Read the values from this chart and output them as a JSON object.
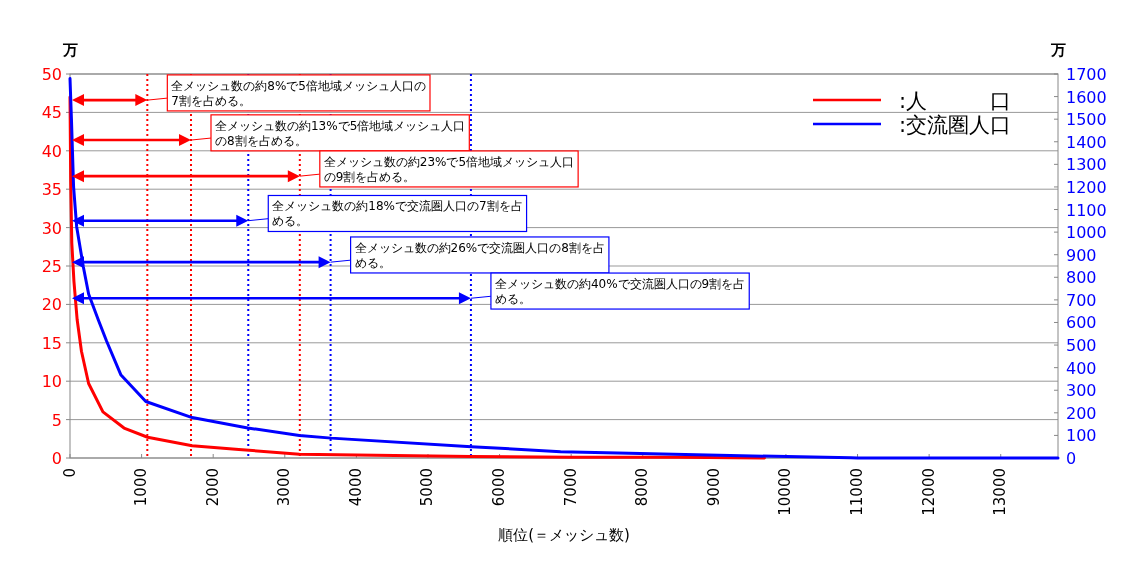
{
  "chart_data": {
    "type": "line",
    "xlabel": "順位(＝メッシュ数)",
    "ylabel": "万",
    "y2label": "万",
    "xlim": [
      0,
      13800
    ],
    "xticks": [
      0,
      1000,
      2000,
      3000,
      4000,
      5000,
      6000,
      7000,
      8000,
      9000,
      10000,
      11000,
      12000,
      13000
    ],
    "ylim": [
      0,
      50
    ],
    "yticks": [
      0,
      5,
      10,
      15,
      20,
      25,
      30,
      35,
      40,
      45,
      50
    ],
    "y2lim": [
      0,
      1700
    ],
    "y2ticks": [
      0,
      100,
      200,
      300,
      400,
      500,
      600,
      700,
      800,
      900,
      1000,
      1100,
      1200,
      1300,
      1400,
      1500,
      1600,
      1700
    ],
    "grid": "y",
    "legend": "top right",
    "line_style": "solid",
    "series": [
      {
        "name": ":人　　　口",
        "color": "#ff0000",
        "x": [
          0,
          10,
          25,
          55,
          100,
          160,
          260,
          460,
          755,
          1084,
          1706,
          2358,
          3204,
          4000,
          5600,
          7000,
          8500,
          9700
        ],
        "values": [
          47,
          36,
          28,
          23,
          18,
          13.9,
          9.7,
          6.0,
          3.9,
          2.7,
          1.6,
          1.1,
          0.5,
          0.4,
          0.2,
          0.1,
          0.1,
          0
        ]
      },
      {
        "name": ":交流圏人口",
        "color": "#0000ff",
        "axis": "y2",
        "x": [
          0,
          20,
          50,
          93,
          186,
          260,
          396,
          509,
          709,
          1059,
          1706,
          2483,
          3204,
          3650,
          5604,
          6853,
          7650,
          8905,
          10909,
          11000,
          13800
        ],
        "values": [
          1680,
          1500,
          1200,
          1024,
          847,
          726,
          611,
          519,
          369,
          250,
          179,
          133,
          100,
          88,
          50,
          28,
          22,
          13,
          1,
          0,
          0
        ]
      }
    ],
    "ref_lines": [
      {
        "axis": "x",
        "value": 1080,
        "color": "#ff0000",
        "line_style": "dotted"
      },
      {
        "axis": "x",
        "value": 1690,
        "color": "#ff0000",
        "line_style": "dotted"
      },
      {
        "axis": "x",
        "value": 3210,
        "color": "#ff0000",
        "line_style": "dotted"
      },
      {
        "axis": "x",
        "value": 2490,
        "color": "#0000ff",
        "line_style": "dotted"
      },
      {
        "axis": "x",
        "value": 3640,
        "color": "#0000ff",
        "line_style": "dotted"
      },
      {
        "axis": "x",
        "value": 5600,
        "color": "#0000ff",
        "line_style": "dotted"
      }
    ],
    "annotations": [
      {
        "text": "全メッシュ数の約8%で5倍地域メッシュ人口の7割を占める。",
        "x": 1080,
        "y": 46.6
      },
      {
        "text": "全メッシュ数の約13%で5倍地域メッシュ人口の8割を占める。",
        "x": 1690,
        "y": 41.4
      },
      {
        "text": "全メッシュ数の約23%で5倍地域メッシュ人口の9割を占める。",
        "x": 3210,
        "y": 36.7
      },
      {
        "text": "全メッシュ数の約18%で交流圏人口の7割を占める。",
        "x": 2490,
        "y": 30.9
      },
      {
        "text": "全メッシュ数の約26%で交流圏人口の8割を占める。",
        "x": 3640,
        "y": 25.5
      },
      {
        "text": "全メッシュ数の約40%で交流圏人口の9割を占める。",
        "x": 5600,
        "y": 20.8
      }
    ]
  }
}
